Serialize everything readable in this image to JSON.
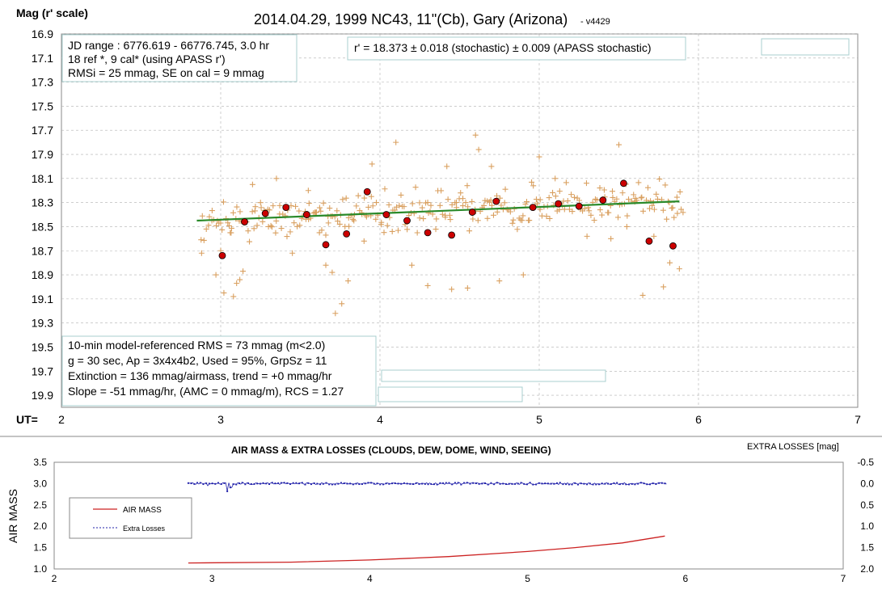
{
  "top_chart": {
    "title": "2014.04.29, 1999 NC43, 11\"(Cb), Gary (Arizona)",
    "version": "- v4429",
    "y_axis_label": "Mag (r' scale)",
    "x_axis_prefix": "UT=",
    "x_ticks": [
      "2",
      "3",
      "4",
      "5",
      "6",
      "7"
    ],
    "y_ticks": [
      "16.9",
      "17.1",
      "17.3",
      "17.5",
      "17.7",
      "17.9",
      "18.1",
      "18.3",
      "18.5",
      "18.7",
      "18.9",
      "19.1",
      "19.3",
      "19.5",
      "19.7",
      "19.9"
    ],
    "info_box_1": [
      "JD range : 6776.619 - 66776.745, 3.0 hr",
      " 18 ref *, 9 cal* (using APASS r')",
      "RMSi = 25 mmag, SE on cal = 9 mmag"
    ],
    "info_box_2": "r' = 18.373 ± 0.018 (stochastic)  ± 0.009 (APASS stochastic)",
    "info_box_3": [
      "10-min model-referenced RMS = 73 mmag (m<2.0)",
      " g = 30 sec, Ap = 3x4x4b2,  Used = 95%,  GrpSz = 11",
      " Extinction = 136 mmag/airmass, trend = +0 mmag/hr",
      "Slope = -51 mmag/hr, (AMC = 0 mmag/m), RCS = 1.27"
    ]
  },
  "bottom_chart": {
    "title": "AIR MASS & EXTRA LOSSES  (CLOUDS,  DEW,  DOME,  WIND,  SEEING)",
    "right_axis_title": "EXTRA  LOSSES [mag]",
    "left_axis_label": "AIR MASS",
    "x_ticks": [
      "2",
      "3",
      "4",
      "5",
      "6",
      "7"
    ],
    "y_left_ticks": [
      "3.5",
      "3.0",
      "2.5",
      "2.0",
      "1.5",
      "1.0"
    ],
    "y_right_ticks": [
      "-0.5",
      "0.0",
      "0.5",
      "1.0",
      "1.5",
      "2.0"
    ],
    "legend": [
      "AIR MASS",
      "Extra Losses"
    ]
  },
  "colors": {
    "plus": "#d9a060",
    "dot": "#cc0000",
    "trend": "#2a8a2a",
    "airmass": "#cc2222",
    "losses": "#2222aa",
    "grid": "#b0b0b0"
  },
  "chart_data": [
    {
      "type": "scatter",
      "x_label": "UT",
      "y_label": "Mag (r' scale)",
      "xlim": [
        2,
        7
      ],
      "ylim": [
        16.9,
        20.0
      ],
      "y_inverted": true,
      "grid": true,
      "series": [
        {
          "kind": "plus",
          "seed": 7,
          "count": 300,
          "x_range": [
            2.88,
            5.9
          ],
          "center_start": 18.45,
          "center_end": 18.29,
          "spread": 0.25,
          "points": [
            [
              2.88,
              18.72
            ],
            [
              2.97,
              18.9
            ],
            [
              3.0,
              18.7
            ],
            [
              3.02,
              19.05
            ],
            [
              3.06,
              18.55
            ],
            [
              3.08,
              19.08
            ],
            [
              3.1,
              18.97
            ],
            [
              3.12,
              18.94
            ],
            [
              3.14,
              18.87
            ],
            [
              3.2,
              18.15
            ],
            [
              3.25,
              18.3
            ],
            [
              3.3,
              18.5
            ],
            [
              3.35,
              18.1
            ],
            [
              3.45,
              18.72
            ],
            [
              3.55,
              18.2
            ],
            [
              3.62,
              18.55
            ],
            [
              3.66,
              18.82
            ],
            [
              3.7,
              18.88
            ],
            [
              3.72,
              19.22
            ],
            [
              3.76,
              19.14
            ],
            [
              3.8,
              18.95
            ],
            [
              3.84,
              18.4
            ],
            [
              3.9,
              18.62
            ],
            [
              3.95,
              17.98
            ],
            [
              4.1,
              17.8
            ],
            [
              4.2,
              18.82
            ],
            [
              4.3,
              18.99
            ],
            [
              4.42,
              18.0
            ],
            [
              4.45,
              19.02
            ],
            [
              4.55,
              19.01
            ],
            [
              4.6,
              17.74
            ],
            [
              4.62,
              17.86
            ],
            [
              4.7,
              18.0
            ],
            [
              4.75,
              18.95
            ],
            [
              4.9,
              18.9
            ],
            [
              5.0,
              17.92
            ],
            [
              5.1,
              18.1
            ],
            [
              5.3,
              18.58
            ],
            [
              5.45,
              18.6
            ],
            [
              5.5,
              17.82
            ],
            [
              5.55,
              18.5
            ],
            [
              5.65,
              19.07
            ],
            [
              5.72,
              18.58
            ],
            [
              5.78,
              19.0
            ],
            [
              5.82,
              18.8
            ],
            [
              5.88,
              18.85
            ]
          ]
        },
        {
          "kind": "dot",
          "name": "",
          "points": [
            [
              3.01,
              18.74
            ],
            [
              3.15,
              18.46
            ],
            [
              3.28,
              18.39
            ],
            [
              3.41,
              18.34
            ],
            [
              3.54,
              18.4
            ],
            [
              3.66,
              18.65
            ],
            [
              3.79,
              18.56
            ],
            [
              3.92,
              18.21
            ],
            [
              4.04,
              18.4
            ],
            [
              4.17,
              18.45
            ],
            [
              4.3,
              18.55
            ],
            [
              4.45,
              18.57
            ],
            [
              4.58,
              18.38
            ],
            [
              4.73,
              18.29
            ],
            [
              4.96,
              18.34
            ],
            [
              5.12,
              18.31
            ],
            [
              5.25,
              18.33
            ],
            [
              5.4,
              18.28
            ],
            [
              5.53,
              18.14
            ],
            [
              5.69,
              18.62
            ],
            [
              5.84,
              18.66
            ]
          ]
        },
        {
          "kind": "trend",
          "name": "",
          "points": [
            [
              2.85,
              18.45
            ],
            [
              5.88,
              18.29
            ]
          ]
        }
      ]
    },
    {
      "type": "line",
      "xlim": [
        2,
        7
      ],
      "y_left_label": "AIR MASS",
      "y_left_lim": [
        1.0,
        3.5
      ],
      "y_right_label": "EXTRA  LOSSES [mag]",
      "y_right_lim": [
        2.0,
        -0.5
      ],
      "grid": false,
      "legend_position": "left",
      "series": [
        {
          "name": "AIR MASS",
          "axis": "left",
          "points": [
            [
              2.85,
              1.14
            ],
            [
              3.5,
              1.16
            ],
            [
              4.0,
              1.21
            ],
            [
              4.5,
              1.29
            ],
            [
              5.0,
              1.41
            ],
            [
              5.3,
              1.5
            ],
            [
              5.6,
              1.61
            ],
            [
              5.87,
              1.77
            ]
          ]
        },
        {
          "name": "Extra Losses",
          "axis": "right",
          "seed": 11,
          "x_range": [
            2.85,
            5.88
          ],
          "count": 320,
          "jitter": 0.022,
          "base": 0.0,
          "dips": [
            [
              3.1,
              0.18
            ],
            [
              3.12,
              0.09
            ],
            [
              2.97,
              0.05
            ]
          ]
        }
      ]
    }
  ]
}
